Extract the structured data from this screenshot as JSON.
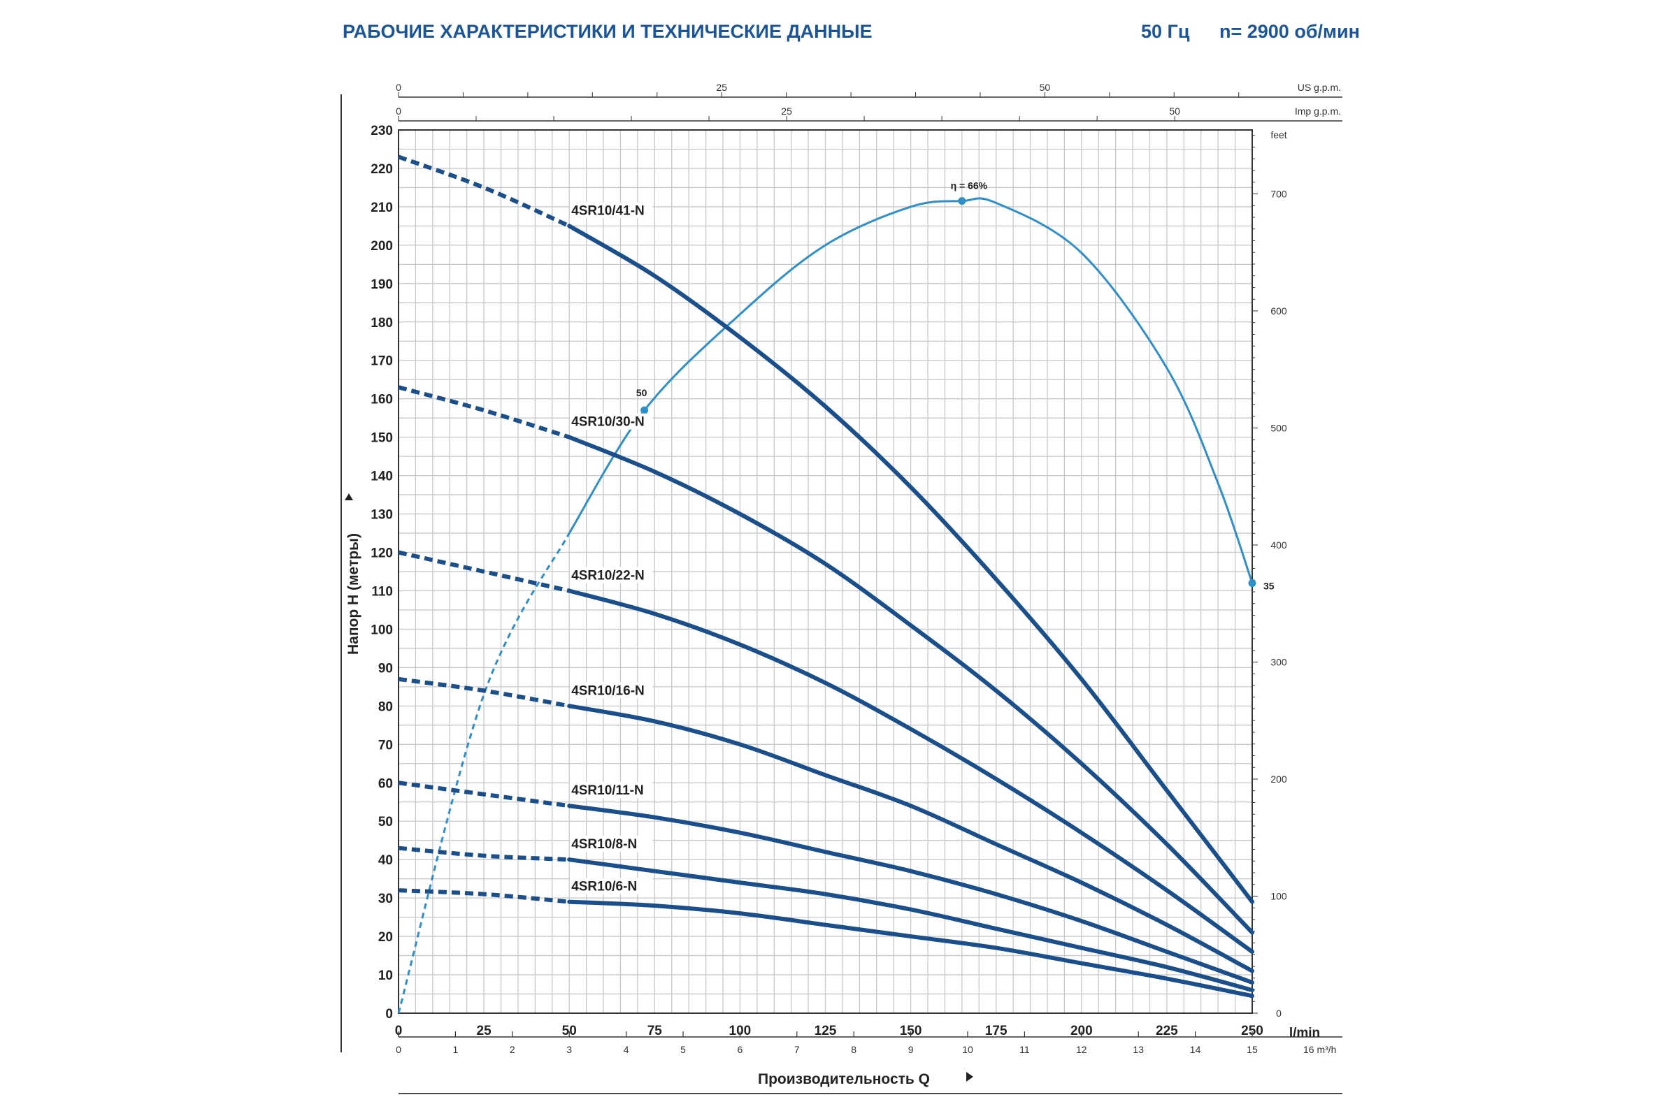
{
  "header": {
    "title": "РАБОЧИЕ ХАРАКТЕРИСТИКИ И ТЕХНИЧЕСКИЕ ДАННЫЕ",
    "frequency": "50 Гц",
    "speed": "n= 2900 об/мин"
  },
  "colors": {
    "pump_curve": "#1a4f8b",
    "efficiency_curve": "#2e8fca",
    "grid": "#c8c8c8",
    "header": "#1b5597"
  },
  "chart_data": {
    "type": "line",
    "title": "",
    "ylabel": "Напор H (метры)",
    "xlabel": "Производительность Q",
    "x_unit": "l/min",
    "ylim": [
      0,
      230
    ],
    "xlim": [
      0,
      250
    ],
    "y_ticks": [
      0,
      10,
      20,
      30,
      40,
      50,
      60,
      70,
      80,
      90,
      100,
      110,
      120,
      130,
      140,
      150,
      160,
      170,
      180,
      190,
      200,
      210,
      220,
      230
    ],
    "x_ticks": [
      0,
      25,
      50,
      75,
      100,
      125,
      150,
      175,
      200,
      225,
      250
    ],
    "grid": true,
    "secondary_axes": {
      "m3h": {
        "unit": "m³/h",
        "ticks": [
          "0",
          "1",
          "2",
          "3",
          "4",
          "5",
          "6",
          "7",
          "8",
          "9",
          "10",
          "11",
          "12",
          "13",
          "14",
          "15",
          "16"
        ]
      },
      "us_gpm": {
        "unit": "US g.p.m.",
        "ticks": [
          "0",
          "25",
          "50"
        ]
      },
      "imp_gpm": {
        "unit": "Imp g.p.m.",
        "ticks": [
          "0",
          "25",
          "50"
        ]
      },
      "feet": {
        "unit": "feet",
        "ticks": [
          "0",
          "100",
          "200",
          "300",
          "400",
          "500",
          "600",
          "700"
        ]
      }
    },
    "recommended_range_start_lpm": 50,
    "series": [
      {
        "name": "4SR10/41-N",
        "x": [
          0,
          25,
          50,
          75,
          100,
          125,
          150,
          175,
          200,
          225,
          250
        ],
        "y": [
          223,
          215,
          205,
          192,
          176,
          158,
          137,
          113,
          87,
          58,
          29
        ]
      },
      {
        "name": "4SR10/30-N",
        "x": [
          0,
          25,
          50,
          75,
          100,
          125,
          150,
          175,
          200,
          225,
          250
        ],
        "y": [
          163,
          157,
          150,
          141,
          130,
          117,
          101,
          84,
          65,
          44,
          21
        ]
      },
      {
        "name": "4SR10/22-N",
        "x": [
          0,
          25,
          50,
          75,
          100,
          125,
          150,
          175,
          200,
          225,
          250
        ],
        "y": [
          120,
          115,
          110,
          104,
          96,
          86,
          74,
          61,
          47,
          32,
          16
        ]
      },
      {
        "name": "4SR10/16-N",
        "x": [
          0,
          25,
          50,
          75,
          100,
          125,
          150,
          175,
          200,
          225,
          250
        ],
        "y": [
          87,
          84,
          80,
          76,
          70,
          62,
          54,
          44,
          34,
          23,
          11
        ]
      },
      {
        "name": "4SR10/11-N",
        "x": [
          0,
          25,
          50,
          75,
          100,
          125,
          150,
          175,
          200,
          225,
          250
        ],
        "y": [
          60,
          57,
          54,
          51,
          47,
          42,
          37,
          31,
          24,
          16,
          8
        ]
      },
      {
        "name": "4SR10/8-N",
        "x": [
          0,
          25,
          50,
          75,
          100,
          125,
          150,
          175,
          200,
          225,
          250
        ],
        "y": [
          43,
          41,
          40,
          37,
          34,
          31,
          27,
          22,
          17,
          12,
          6
        ]
      },
      {
        "name": "4SR10/6-N",
        "x": [
          0,
          25,
          50,
          75,
          100,
          125,
          150,
          175,
          200,
          225,
          250
        ],
        "y": [
          32,
          31,
          29,
          28,
          26,
          23,
          20,
          17,
          13,
          9,
          4.5
        ]
      }
    ],
    "efficiency_curve": {
      "label_prefix": "η = ",
      "x": [
        0,
        25,
        50,
        72,
        100,
        125,
        150,
        165,
        175,
        200,
        225,
        240,
        250
      ],
      "y": [
        0,
        83,
        125,
        157,
        182,
        200,
        210,
        211.5,
        211,
        198,
        168,
        138,
        112
      ],
      "points": [
        {
          "x": 72,
          "y": 157,
          "label": "50"
        },
        {
          "x": 165,
          "y": 211.5,
          "label": "66%"
        },
        {
          "x": 250,
          "y": 112,
          "label": "35"
        }
      ]
    }
  }
}
